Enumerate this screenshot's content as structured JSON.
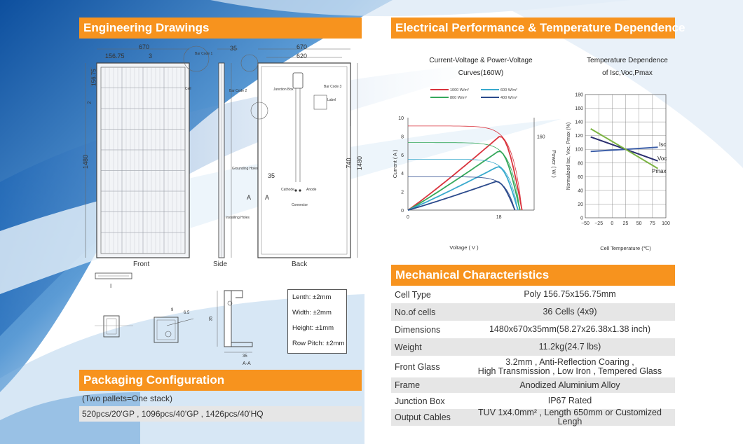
{
  "sections": {
    "engineering": "Engineering Drawings",
    "electrical": "Electrical Performance & Temperature Dependence",
    "packaging": "Packaging Configuration",
    "mechanical": "Mechanical Characteristics"
  },
  "drawing": {
    "views": [
      "Front",
      "Side",
      "Back"
    ],
    "dims": {
      "width": "670",
      "cell": "156.75",
      "gap": "3",
      "cell_v": "156.75",
      "height": "1480",
      "thickness": "35",
      "back_inner": "620",
      "mount": "740",
      "mount_r": "1480",
      "side_small": "2",
      "conn_a": "35"
    },
    "notes": {
      "bar_code_1": "Bar Code 1",
      "bar_code_2": "Bar Code 2",
      "bar_code_3": "Bar Code 3",
      "cell": "Cell",
      "junction_box": "Junction Box",
      "label": "Label",
      "grounding": "Grounding Holes",
      "cathode": "Cathode",
      "anode": "Anode",
      "connector": "Connector",
      "installing": "Installing Holes"
    },
    "section_marks": {
      "a1": "A",
      "a2": "A",
      "aa": "A-A",
      "i_mark": "I"
    },
    "profile_dims": {
      "d1": "9",
      "d2": "6.5",
      "d3": "35",
      "d4": "35"
    },
    "tolerances": [
      "Lenth: ±2mm",
      "Width: ±2mm",
      "Height: ±1mm",
      "Row Pitch: ±2mm"
    ]
  },
  "packaging": {
    "note": "(Two pallets=One stack)",
    "details": "520pcs/20'GP , 1096pcs/40'GP , 1426pcs/40'HQ"
  },
  "charts": {
    "iv_title_line1": "Current-Voltage & Power-Voltage",
    "iv_title_line2": "Curves(160W)",
    "temp_title_line1": "Temperature Dependence",
    "temp_title_line2": "of Isc,Voc,Pmax"
  },
  "chart_data": [
    {
      "type": "line",
      "title": "Current-Voltage & Power-Voltage Curves(160W)",
      "xlabel": "Voltage ( V )",
      "ylabel": "Current ( A )",
      "y2label": "Power ( W )",
      "xlim": [
        0,
        25
      ],
      "ylim": [
        0,
        10
      ],
      "y2lim": [
        0,
        200
      ],
      "xticks": [
        "0",
        "18"
      ],
      "yticks": [
        "0",
        "2",
        "4",
        "6",
        "8",
        "10"
      ],
      "y2ticks": [
        "160"
      ],
      "legend": [
        "1000 W/m²",
        "800 W/m²",
        "600 W/m²",
        "400 W/m²"
      ],
      "legend_placement": "top",
      "series": [
        {
          "name": "1000 W/m²",
          "color": "#d9333d",
          "isc": 9.1,
          "voc": 22.6,
          "pmax_v": 18.2,
          "pmax_p": 160
        },
        {
          "name": "800 W/m²",
          "color": "#35a85b",
          "isc": 7.3,
          "voc": 22.2,
          "pmax_v": 18.0,
          "pmax_p": 128
        },
        {
          "name": "600 W/m²",
          "color": "#39aacd",
          "isc": 5.5,
          "voc": 21.8,
          "pmax_v": 17.8,
          "pmax_p": 94
        },
        {
          "name": "400 W/m²",
          "color": "#2b4a8c",
          "isc": 3.6,
          "voc": 21.2,
          "pmax_v": 17.5,
          "pmax_p": 62
        }
      ]
    },
    {
      "type": "line",
      "title": "Temperature Dependence of Isc,Voc,Pmax",
      "xlabel": "Cell Temperature (℃)",
      "ylabel": "Normalized Isc, Voc, Pmax (%)",
      "xlim": [
        -50,
        100
      ],
      "ylim": [
        0,
        180
      ],
      "xticks": [
        "−50",
        "−25",
        "0",
        "25",
        "50",
        "75",
        "100"
      ],
      "yticks": [
        "0",
        "20",
        "40",
        "60",
        "80",
        "100",
        "120",
        "140",
        "160",
        "180"
      ],
      "grid": true,
      "series": [
        {
          "name": "Isc",
          "color": "#3d5fa8",
          "x": [
            -40,
            25,
            85
          ],
          "y": [
            97,
            100,
            103
          ]
        },
        {
          "name": "Voc",
          "color": "#2b2f6f",
          "x": [
            -40,
            25,
            85
          ],
          "y": [
            118,
            100,
            83
          ]
        },
        {
          "name": "Pmax",
          "color": "#7cb442",
          "x": [
            -40,
            25,
            85
          ],
          "y": [
            130,
            100,
            72
          ]
        }
      ]
    }
  ],
  "mechanical": [
    {
      "key": "Cell Type",
      "value": [
        "Poly 156.75x156.75mm"
      ]
    },
    {
      "key": "No.of cells",
      "value": [
        "36 Cells (4x9)"
      ]
    },
    {
      "key": "Dimensions",
      "value": [
        "1480x670x35mm(58.27x26.38x1.38 inch)"
      ]
    },
    {
      "key": "Weight",
      "value": [
        "11.2kg(24.7 lbs)"
      ]
    },
    {
      "key": "Front Glass",
      "value": [
        "3.2mm ,  Anti-Reflection Coaring ,",
        "High Transmission , Low Iron , Tempered Glass"
      ]
    },
    {
      "key": "Frame",
      "value": [
        "Anodized Aluminium Alloy"
      ]
    },
    {
      "key": "Junction Box",
      "value": [
        "IP67 Rated"
      ]
    },
    {
      "key": "Output Cables",
      "value": [
        "TUV 1x4.0mm² , Length 650mm or Customized Lengh"
      ]
    }
  ]
}
